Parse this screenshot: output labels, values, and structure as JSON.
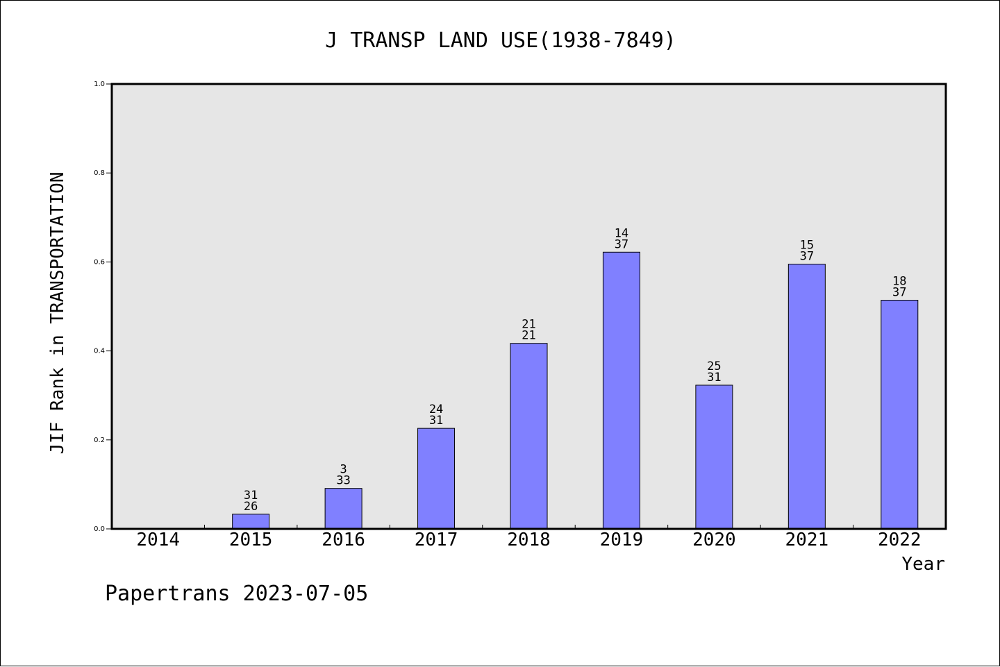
{
  "chart_data": {
    "type": "bar",
    "title": "J TRANSP LAND USE(1938-7849)",
    "xlabel": "Year",
    "ylabel": "JIF Rank in TRANSPORTATION",
    "categories": [
      "2014",
      "2015",
      "2016",
      "2017",
      "2018",
      "2019",
      "2020",
      "2021",
      "2022"
    ],
    "values": [
      0,
      0.033,
      0.091,
      0.226,
      0.417,
      0.622,
      0.323,
      0.595,
      0.514
    ],
    "label_top": [
      "",
      "31",
      "3",
      "24",
      "21",
      "14",
      "25",
      "15",
      "18"
    ],
    "label_bottom": [
      "",
      "26",
      "33",
      "31",
      "21",
      "37",
      "31",
      "37",
      "37"
    ],
    "ylim": [
      0,
      1.0
    ],
    "yticks": [
      "0.0",
      "0.2",
      "0.4",
      "0.6",
      "0.8",
      "1.0"
    ],
    "grid": false,
    "colors": {
      "bar": "#8080ff",
      "plot_bg": "#e6e6e6",
      "axis": "#000000"
    }
  },
  "footer": {
    "text": "Papertrans 2023-07-05"
  }
}
